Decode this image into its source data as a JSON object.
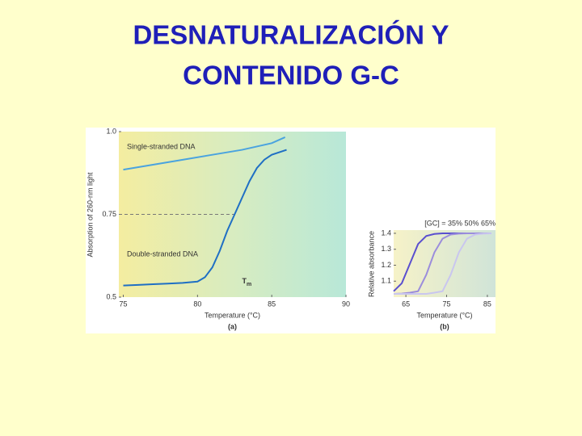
{
  "slide_title": [
    "DESNATURALIZACIÓN Y",
    "CONTENIDO G-C"
  ],
  "chart_data": [
    {
      "type": "line",
      "panel": "(a)",
      "x_label": "Temperature (°C)",
      "y_label": "Absorption of 260-nm light",
      "xlim": [
        74.7,
        90
      ],
      "xticks": [
        75,
        80,
        85,
        90
      ],
      "ylim": [
        0.5,
        1.0
      ],
      "yticks": [
        0.5,
        0.75,
        {
          "value": 1.0,
          "label": "1.0"
        }
      ],
      "annotations": [
        "Single-stranded DNA",
        "Double-stranded DNA"
      ],
      "tm_symbol": "T",
      "tm_subscript": "m",
      "series": [
        {
          "color": "#4aa3df",
          "x": [
            75,
            77,
            79,
            81,
            83,
            85,
            85.9
          ],
          "values": [
            0.885,
            0.9,
            0.915,
            0.93,
            0.945,
            0.965,
            0.983
          ]
        },
        {
          "color": "#1f6fc4",
          "x": [
            75,
            76,
            77,
            78,
            79,
            80,
            80.5,
            81,
            81.5,
            82,
            82.5,
            83,
            83.5,
            84,
            84.5,
            85,
            86
          ],
          "values": [
            0.535,
            0.537,
            0.539,
            0.541,
            0.543,
            0.547,
            0.56,
            0.59,
            0.64,
            0.7,
            0.75,
            0.8,
            0.85,
            0.89,
            0.915,
            0.93,
            0.945
          ]
        }
      ]
    },
    {
      "type": "line",
      "panel": "(b)",
      "title": "[GC] = 35% 50% 65%",
      "x_label": "Temperature (°C)",
      "y_label": "Relative absorbance",
      "xlim": [
        62,
        87
      ],
      "xticks": [
        65,
        75,
        85
      ],
      "ylim": [
        1.0,
        1.42
      ],
      "yticks": [
        1.1,
        1.2,
        1.3,
        1.4
      ],
      "series": [
        {
          "color": "#5a4fcf",
          "x": [
            62,
            64,
            66,
            68,
            70,
            72,
            74,
            76,
            78,
            80,
            82,
            84,
            86
          ],
          "values": [
            1.037,
            1.087,
            1.21,
            1.333,
            1.383,
            1.396,
            1.4,
            1.4,
            1.4,
            1.4,
            1.4,
            1.4,
            1.4
          ]
        },
        {
          "color": "#9b8ddc",
          "x": [
            62,
            64,
            66,
            68,
            70,
            72,
            74,
            76,
            78,
            80,
            82,
            84,
            86
          ],
          "values": [
            1.02,
            1.022,
            1.028,
            1.037,
            1.14,
            1.28,
            1.366,
            1.392,
            1.398,
            1.4,
            1.4,
            1.4,
            1.4
          ]
        },
        {
          "color": "#c9c6ef",
          "x": [
            62,
            64,
            66,
            68,
            70,
            72,
            74,
            76,
            78,
            80,
            82,
            84,
            86
          ],
          "values": [
            1.02,
            1.02,
            1.02,
            1.02,
            1.02,
            1.028,
            1.037,
            1.14,
            1.28,
            1.366,
            1.392,
            1.398,
            1.4
          ]
        }
      ]
    }
  ]
}
